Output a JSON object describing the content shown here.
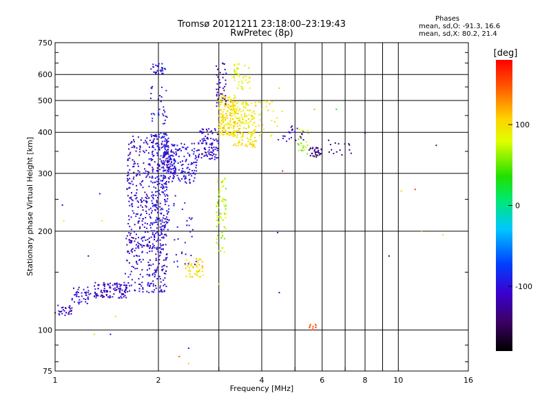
{
  "chart_data": {
    "type": "scatter",
    "title": "Tromsø 20121211 23:18:00–23:19:43",
    "subtitle": "RwPretec (8p)",
    "xlabel": "Frequency [MHz]",
    "ylabel": "Stationary phase Virtual Height [km]",
    "x_scale": "log",
    "y_scale": "log",
    "xlim": [
      1,
      16
    ],
    "ylim": [
      75,
      750
    ],
    "x_ticks": [
      1,
      2,
      4,
      6,
      8,
      10,
      16
    ],
    "x_tick_labels": [
      "1",
      "2",
      "4",
      "6",
      "8",
      "10",
      "16"
    ],
    "y_ticks": [
      75,
      100,
      200,
      300,
      400,
      500,
      600,
      750
    ],
    "y_tick_labels": [
      "75",
      "100",
      "200",
      "300",
      "400",
      "500",
      "600",
      "750"
    ],
    "x_minor_ticks": [
      3,
      5,
      7,
      9
    ],
    "y_minor_ticks": [
      80,
      90,
      150,
      250,
      350,
      450,
      550,
      650,
      700
    ],
    "grid": true,
    "colorbar": {
      "label": "[deg]",
      "ticks": [
        -100,
        0,
        100
      ],
      "tick_labels": [
        "-100",
        "0",
        "100"
      ],
      "range": [
        -180,
        180
      ]
    },
    "stats": {
      "heading": "Phases",
      "o_line": "mean, sd,O: -91.3, 16.6",
      "x_line": "mean, sd,X: 80.2, 21.4"
    },
    "clusters": [
      {
        "x": [
          1.0,
          1.12
        ],
        "y": [
          110,
          120
        ],
        "phase": -110,
        "n": 30
      },
      {
        "x": [
          1.12,
          1.28
        ],
        "y": [
          120,
          135
        ],
        "phase": -105,
        "n": 40
      },
      {
        "x": [
          1.3,
          1.62
        ],
        "y": [
          125,
          140
        ],
        "phase": -110,
        "n": 110
      },
      {
        "x": [
          1.6,
          1.82
        ],
        "y": [
          130,
          200
        ],
        "phase": -105,
        "n": 80
      },
      {
        "x": [
          1.62,
          1.9
        ],
        "y": [
          180,
          390
        ],
        "phase": -110,
        "n": 200
      },
      {
        "x": [
          1.85,
          2.12
        ],
        "y": [
          130,
          200
        ],
        "phase": -105,
        "n": 150
      },
      {
        "x": [
          1.9,
          2.15
        ],
        "y": [
          200,
          400
        ],
        "phase": -100,
        "n": 300
      },
      {
        "x": [
          2.05,
          2.25
        ],
        "y": [
          300,
          350
        ],
        "phase": -110,
        "n": 60
      },
      {
        "x": [
          1.9,
          2.1
        ],
        "y": [
          600,
          650
        ],
        "phase": -100,
        "n": 30
      },
      {
        "x": [
          1.9,
          2.12
        ],
        "y": [
          420,
          560
        ],
        "phase": -100,
        "n": 30
      },
      {
        "x": [
          2.15,
          2.6
        ],
        "y": [
          280,
          370
        ],
        "phase": -100,
        "n": 130
      },
      {
        "x": [
          2.6,
          3.0
        ],
        "y": [
          330,
          410
        ],
        "phase": -110,
        "n": 100
      },
      {
        "x": [
          2.2,
          2.6
        ],
        "y": [
          150,
          260
        ],
        "phase": -100,
        "n": 30
      },
      {
        "x": [
          2.4,
          2.7
        ],
        "y": [
          145,
          165
        ],
        "phase": 100,
        "n": 50
      },
      {
        "x": [
          3.0,
          3.35
        ],
        "y": [
          390,
          520
        ],
        "phase": 100,
        "n": 170
      },
      {
        "x": [
          3.3,
          3.85
        ],
        "y": [
          360,
          500
        ],
        "phase": 95,
        "n": 180
      },
      {
        "x": [
          2.95,
          3.15
        ],
        "y": [
          170,
          300
        ],
        "phase": 70,
        "n": 70
      },
      {
        "x": [
          2.95,
          3.15
        ],
        "y": [
          480,
          650
        ],
        "phase": -120,
        "n": 40
      },
      {
        "x": [
          3.3,
          3.7
        ],
        "y": [
          540,
          650
        ],
        "phase": 85,
        "n": 40
      },
      {
        "x": [
          3.9,
          4.6
        ],
        "y": [
          380,
          500
        ],
        "phase": 95,
        "n": 25
      },
      {
        "x": [
          4.4,
          5.3
        ],
        "y": [
          375,
          420
        ],
        "phase": -110,
        "n": 25
      },
      {
        "x": [
          5.1,
          5.5
        ],
        "y": [
          340,
          410
        ],
        "phase": 60,
        "n": 25
      },
      {
        "x": [
          5.5,
          6.0
        ],
        "y": [
          335,
          360
        ],
        "phase": -140,
        "n": 35
      },
      {
        "x": [
          6.2,
          7.3
        ],
        "y": [
          340,
          380
        ],
        "phase": -140,
        "n": 15
      },
      {
        "x": [
          5.5,
          5.8
        ],
        "y": [
          100,
          104
        ],
        "phase": 150,
        "n": 12
      }
    ],
    "sparse_points": [
      {
        "x": 1.05,
        "y": 240,
        "phase": -110
      },
      {
        "x": 1.06,
        "y": 215,
        "phase": 90
      },
      {
        "x": 1.25,
        "y": 168,
        "phase": -110
      },
      {
        "x": 1.35,
        "y": 260,
        "phase": -100
      },
      {
        "x": 1.37,
        "y": 215,
        "phase": 90
      },
      {
        "x": 1.3,
        "y": 97,
        "phase": 110
      },
      {
        "x": 1.45,
        "y": 97,
        "phase": -110
      },
      {
        "x": 1.5,
        "y": 110,
        "phase": 100
      },
      {
        "x": 2.3,
        "y": 83,
        "phase": 150
      },
      {
        "x": 2.45,
        "y": 88,
        "phase": -110
      },
      {
        "x": 2.45,
        "y": 79,
        "phase": 110
      },
      {
        "x": 3.0,
        "y": 138,
        "phase": 110
      },
      {
        "x": 4.5,
        "y": 130,
        "phase": -120
      },
      {
        "x": 4.45,
        "y": 198,
        "phase": -110
      },
      {
        "x": 4.6,
        "y": 305,
        "phase": 170
      },
      {
        "x": 5.7,
        "y": 470,
        "phase": 120
      },
      {
        "x": 6.6,
        "y": 470,
        "phase": 30
      },
      {
        "x": 8.0,
        "y": 398,
        "phase": -120
      },
      {
        "x": 9.4,
        "y": 168,
        "phase": -130
      },
      {
        "x": 10.2,
        "y": 265,
        "phase": 110
      },
      {
        "x": 11.2,
        "y": 268,
        "phase": 160
      },
      {
        "x": 11.7,
        "y": 200,
        "phase": 120
      },
      {
        "x": 12.9,
        "y": 365,
        "phase": -140
      },
      {
        "x": 13.5,
        "y": 195,
        "phase": 100
      },
      {
        "x": 4.2,
        "y": 500,
        "phase": 120
      },
      {
        "x": 4.5,
        "y": 545,
        "phase": 110
      }
    ]
  }
}
